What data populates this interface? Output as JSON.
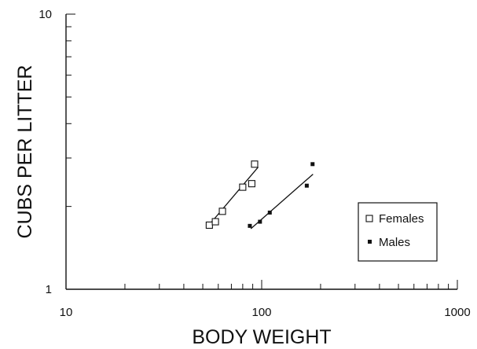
{
  "chart_data": {
    "type": "scatter",
    "xscale": "log",
    "yscale": "log",
    "xlim": [
      10,
      1000
    ],
    "ylim": [
      1,
      10
    ],
    "xlabel": "BODY WEIGHT",
    "ylabel": "CUBS PER LITTER",
    "x_tick_labels": [
      "10",
      "100",
      "1000"
    ],
    "y_tick_labels": [
      "1",
      "10"
    ],
    "grid": false,
    "legend_position": "right",
    "series": [
      {
        "name": "Females",
        "marker": "open-square",
        "points": [
          {
            "x": 54,
            "y": 1.71
          },
          {
            "x": 58,
            "y": 1.76
          },
          {
            "x": 63,
            "y": 1.92
          },
          {
            "x": 80,
            "y": 2.35
          },
          {
            "x": 89,
            "y": 2.42
          },
          {
            "x": 92,
            "y": 2.85
          }
        ],
        "fit_line": [
          {
            "x": 53,
            "y": 1.69
          },
          {
            "x": 96,
            "y": 2.78
          }
        ]
      },
      {
        "name": "Males",
        "marker": "filled-square",
        "points": [
          {
            "x": 87,
            "y": 1.7
          },
          {
            "x": 98,
            "y": 1.76
          },
          {
            "x": 110,
            "y": 1.9
          },
          {
            "x": 170,
            "y": 2.38
          },
          {
            "x": 182,
            "y": 2.85
          }
        ],
        "fit_line": [
          {
            "x": 88,
            "y": 1.66
          },
          {
            "x": 183,
            "y": 2.62
          }
        ]
      }
    ]
  }
}
